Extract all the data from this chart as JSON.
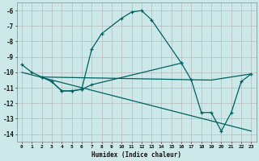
{
  "xlabel": "Humidex (Indice chaleur)",
  "bg_color": "#cce8e8",
  "grid_color": "#b0b0b0",
  "line_color": "#006060",
  "xlim": [
    -0.5,
    23.5
  ],
  "ylim": [
    -14.5,
    -5.5
  ],
  "yticks": [
    -14,
    -13,
    -12,
    -11,
    -10,
    -9,
    -8,
    -7,
    -6
  ],
  "xticks": [
    0,
    1,
    2,
    3,
    4,
    5,
    6,
    7,
    8,
    9,
    10,
    11,
    12,
    13,
    14,
    15,
    16,
    17,
    18,
    19,
    20,
    21,
    22,
    23
  ],
  "series": [
    {
      "x": [
        0,
        1,
        2,
        3,
        4,
        5,
        6,
        7,
        8,
        10,
        11,
        12,
        13,
        16
      ],
      "y": [
        -9.5,
        -10.0,
        -10.3,
        -10.6,
        -11.2,
        -11.2,
        -11.1,
        -8.5,
        -7.5,
        -6.5,
        -6.1,
        -6.0,
        -6.6,
        -9.4
      ],
      "has_markers": true
    },
    {
      "x": [
        2,
        3,
        4,
        5,
        6,
        7,
        16,
        17,
        18,
        19,
        20,
        21,
        22,
        23
      ],
      "y": [
        -10.3,
        -10.6,
        -11.2,
        -11.2,
        -11.1,
        -10.8,
        -9.4,
        -10.5,
        -12.6,
        -12.6,
        -13.8,
        -12.6,
        -10.6,
        -10.1
      ],
      "has_markers": true
    },
    {
      "x": [
        0,
        23
      ],
      "y": [
        -10.0,
        -13.8
      ],
      "has_markers": false
    },
    {
      "x": [
        2,
        19,
        23
      ],
      "y": [
        -10.3,
        -10.5,
        -10.1
      ],
      "has_markers": false
    }
  ]
}
